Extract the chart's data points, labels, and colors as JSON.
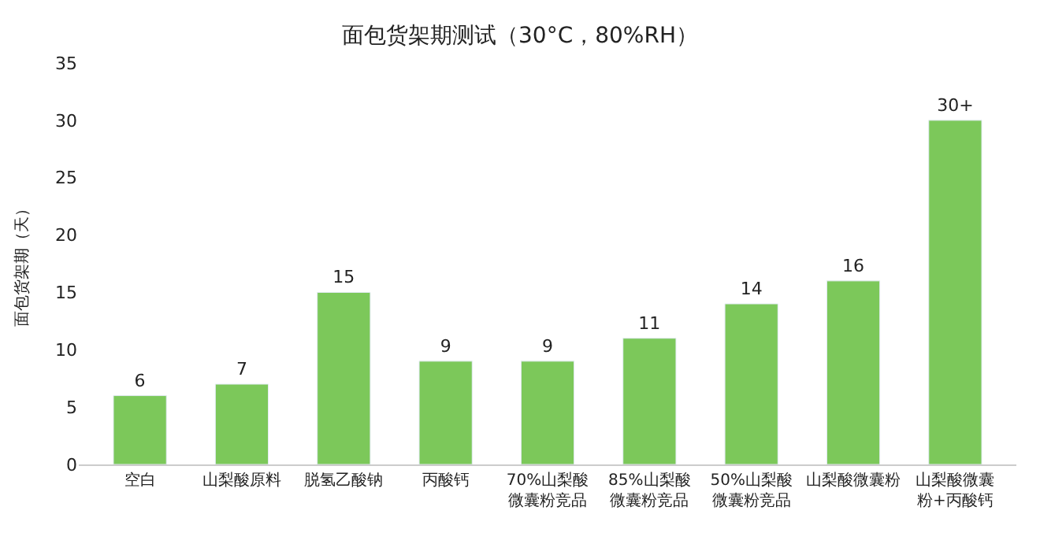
{
  "chart_data": {
    "type": "bar",
    "title": "面包货架期测试（30°C，80%RH）",
    "ylabel": "面包货架期（天）",
    "categories": [
      "空白",
      "山梨酸原料",
      "脱氢乙酸钠",
      "丙酸钙",
      "70%山梨酸微囊粉竞品",
      "85%山梨酸微囊粉竞品",
      "50%山梨酸微囊粉竞品",
      "山梨酸微囊粉",
      "山梨酸微囊粉+丙酸钙"
    ],
    "values": [
      6,
      7,
      15,
      9,
      9,
      11,
      14,
      16,
      30
    ],
    "value_labels": [
      "6",
      "7",
      "15",
      "9",
      "9",
      "11",
      "14",
      "16",
      "30+"
    ],
    "color": "#7cc85a",
    "ylim": [
      0,
      35
    ],
    "yticks": [
      0,
      5,
      10,
      15,
      20,
      25,
      30,
      35
    ],
    "legend": false
  }
}
